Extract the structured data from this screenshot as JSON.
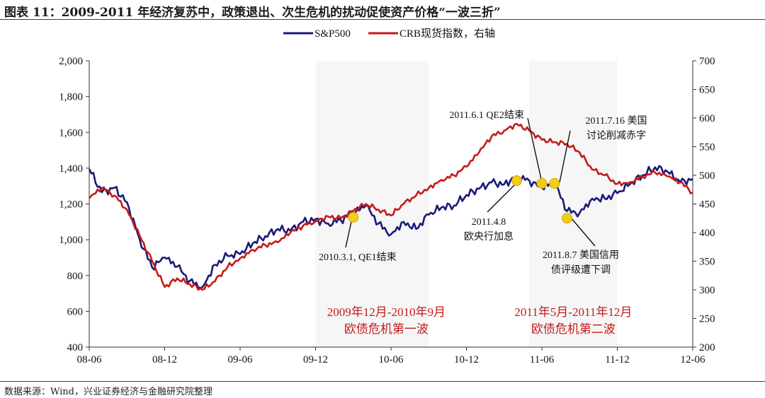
{
  "title": "图表 11：2009-2011 年经济复苏中，政策退出、次生危机的扰动促使资产价格“一波三折”",
  "source": "数据来源：Wind，兴业证券经济与金融研究院整理",
  "colors": {
    "sp500": "#1a1a78",
    "crb": "#c41a1a",
    "marker": "#f2cc1a",
    "annotation_red": "#c41a1a"
  },
  "chart_data": {
    "type": "line",
    "x_tick_labels": [
      "08-06",
      "08-12",
      "09-06",
      "09-12",
      "10-06",
      "10-12",
      "11-06",
      "11-12",
      "12-06"
    ],
    "x_range": [
      "2008-06",
      "2012-06"
    ],
    "left_axis": {
      "ticks": [
        "400",
        "600",
        "800",
        "1,000",
        "1,200",
        "1,400",
        "1,600",
        "1,800",
        "2,000"
      ],
      "ylim": [
        400,
        2000
      ]
    },
    "right_axis": {
      "ticks": [
        "200",
        "250",
        "300",
        "350",
        "400",
        "450",
        "500",
        "550",
        "600",
        "650",
        "700"
      ],
      "ylim": [
        200,
        700
      ]
    },
    "legend": [
      "S&P500",
      "CRB现货指数，右轴"
    ],
    "legend_position": "top-center",
    "series": [
      {
        "name": "S&P500",
        "axis": "left",
        "points": [
          [
            "2008-06",
            1395
          ],
          [
            "2008-07",
            1265
          ],
          [
            "2008-08",
            1290
          ],
          [
            "2008-09",
            1210
          ],
          [
            "2008-10",
            1005
          ],
          [
            "2008-11",
            845
          ],
          [
            "2008-12",
            900
          ],
          [
            "2009-01",
            850
          ],
          [
            "2009-02",
            770
          ],
          [
            "2009-03",
            735
          ],
          [
            "2009-04",
            860
          ],
          [
            "2009-05",
            910
          ],
          [
            "2009-06",
            920
          ],
          [
            "2009-07",
            980
          ],
          [
            "2009-08",
            1020
          ],
          [
            "2009-09",
            1060
          ],
          [
            "2009-10",
            1050
          ],
          [
            "2009-11",
            1100
          ],
          [
            "2009-12",
            1115
          ],
          [
            "2010-01",
            1090
          ],
          [
            "2010-02",
            1110
          ],
          [
            "2010-03",
            1150
          ],
          [
            "2010-04",
            1190
          ],
          [
            "2010-05",
            1090
          ],
          [
            "2010-06",
            1030
          ],
          [
            "2010-07",
            1100
          ],
          [
            "2010-08",
            1060
          ],
          [
            "2010-09",
            1140
          ],
          [
            "2010-10",
            1180
          ],
          [
            "2010-11",
            1190
          ],
          [
            "2010-12",
            1250
          ],
          [
            "2011-01",
            1285
          ],
          [
            "2011-02",
            1320
          ],
          [
            "2011-03",
            1310
          ],
          [
            "2011-04",
            1355
          ],
          [
            "2011-05",
            1330
          ],
          [
            "2011-06",
            1290
          ],
          [
            "2011-07",
            1320
          ],
          [
            "2011-08",
            1160
          ],
          [
            "2011-09",
            1150
          ],
          [
            "2011-10",
            1230
          ],
          [
            "2011-11",
            1230
          ],
          [
            "2011-12",
            1260
          ],
          [
            "2012-01",
            1310
          ],
          [
            "2012-02",
            1360
          ],
          [
            "2012-03",
            1405
          ],
          [
            "2012-04",
            1380
          ],
          [
            "2012-05",
            1320
          ],
          [
            "2012-06",
            1340
          ]
        ]
      },
      {
        "name": "CRB现货指数，右轴",
        "axis": "right",
        "points": [
          [
            "2008-06",
            460
          ],
          [
            "2008-07",
            478
          ],
          [
            "2008-08",
            465
          ],
          [
            "2008-09",
            440
          ],
          [
            "2008-10",
            395
          ],
          [
            "2008-11",
            350
          ],
          [
            "2008-12",
            305
          ],
          [
            "2009-01",
            320
          ],
          [
            "2009-02",
            310
          ],
          [
            "2009-03",
            300
          ],
          [
            "2009-04",
            315
          ],
          [
            "2009-05",
            340
          ],
          [
            "2009-06",
            355
          ],
          [
            "2009-07",
            370
          ],
          [
            "2009-08",
            378
          ],
          [
            "2009-09",
            383
          ],
          [
            "2009-10",
            400
          ],
          [
            "2009-11",
            412
          ],
          [
            "2009-12",
            420
          ],
          [
            "2010-01",
            428
          ],
          [
            "2010-02",
            425
          ],
          [
            "2010-03",
            438
          ],
          [
            "2010-04",
            450
          ],
          [
            "2010-05",
            440
          ],
          [
            "2010-06",
            430
          ],
          [
            "2010-07",
            450
          ],
          [
            "2010-08",
            465
          ],
          [
            "2010-09",
            478
          ],
          [
            "2010-10",
            492
          ],
          [
            "2010-11",
            500
          ],
          [
            "2010-12",
            515
          ],
          [
            "2011-01",
            540
          ],
          [
            "2011-02",
            568
          ],
          [
            "2011-03",
            578
          ],
          [
            "2011-04",
            590
          ],
          [
            "2011-05",
            578
          ],
          [
            "2011-06",
            562
          ],
          [
            "2011-07",
            558
          ],
          [
            "2011-08",
            555
          ],
          [
            "2011-09",
            540
          ],
          [
            "2011-10",
            510
          ],
          [
            "2011-11",
            500
          ],
          [
            "2011-12",
            485
          ],
          [
            "2012-01",
            488
          ],
          [
            "2012-02",
            498
          ],
          [
            "2012-03",
            505
          ],
          [
            "2012-04",
            498
          ],
          [
            "2012-05",
            488
          ],
          [
            "2012-06",
            470
          ]
        ]
      }
    ],
    "highlight_periods": [
      {
        "start": "2009-12",
        "end": "2010-09",
        "label_lines": [
          "2009年12月-2010年9月",
          "欧债危机第一波"
        ]
      },
      {
        "start": "2011-05",
        "end": "2011-12",
        "label_lines": [
          "2011年5月-2011年12月",
          "欧债危机第二波"
        ]
      }
    ],
    "annotations": [
      {
        "date": "2010-03",
        "value": 1125,
        "label_lines": [
          "2010.3.1, QE1结束"
        ]
      },
      {
        "date": "2011-04",
        "value": 1330,
        "label_lines": [
          "2011.4.8",
          "欧央行加息"
        ]
      },
      {
        "date": "2011-06",
        "value": 1315,
        "label_lines": [
          "2011.6.1 QE2结束"
        ]
      },
      {
        "date": "2011-07",
        "value": 1315,
        "label_lines": [
          "2011.7.16 美国",
          "讨论削减赤字"
        ]
      },
      {
        "date": "2011-08",
        "value": 1120,
        "label_lines": [
          "2011.8.7 美国信用",
          "债评级遭下调"
        ]
      }
    ]
  }
}
